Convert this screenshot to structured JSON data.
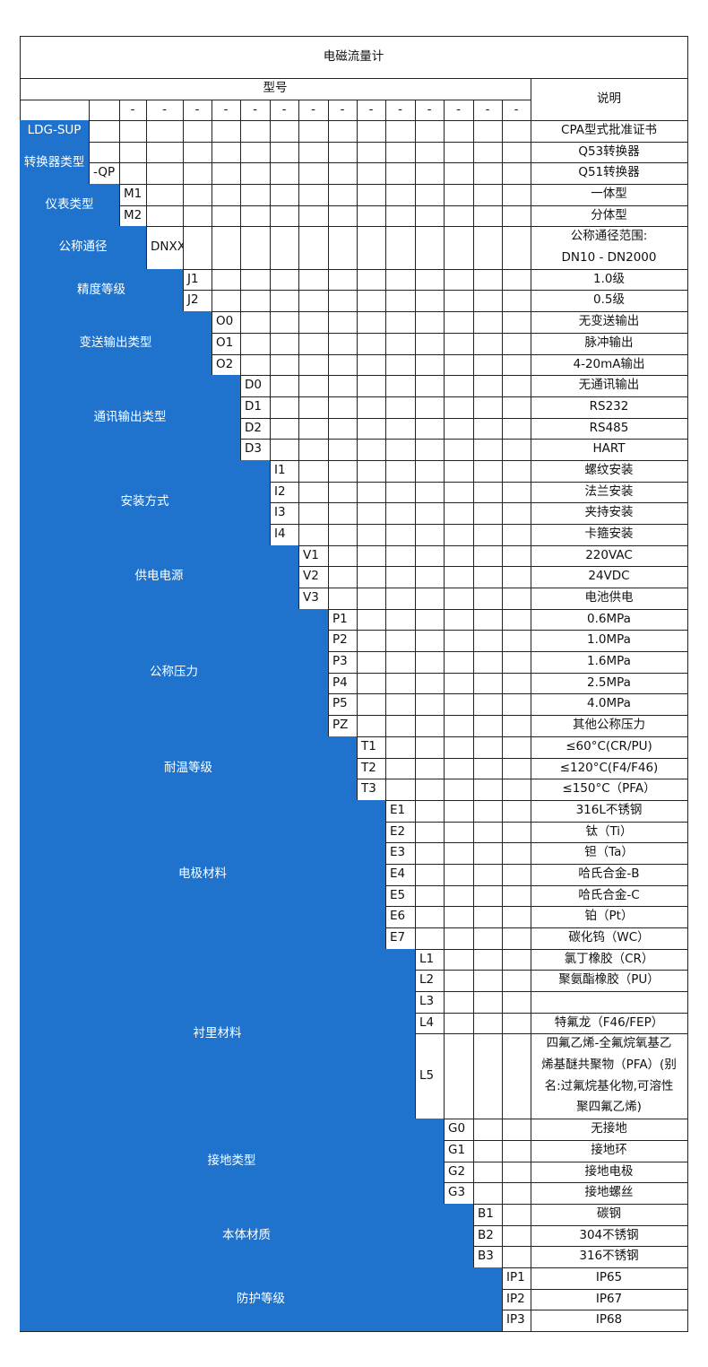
{
  "title": "电磁流量计",
  "model_header": "型号",
  "desc_header": "说明",
  "separators": [
    "-",
    "-",
    "-",
    "-",
    "-",
    "-",
    "-",
    "-",
    "-",
    "-",
    "-",
    "-",
    "-",
    "-"
  ],
  "groups": [
    {
      "name": "LDG-SUP",
      "items": [
        {
          "code": null,
          "desc": "CPA型式批准证书"
        }
      ]
    },
    {
      "name": "转换器类型",
      "items": [
        {
          "code": null,
          "desc": "Q53转换器"
        },
        {
          "code": "-QP",
          "desc": "Q51转换器"
        }
      ]
    },
    {
      "name": "仪表类型",
      "items": [
        {
          "code": "M1",
          "desc": "一体型"
        },
        {
          "code": "M2",
          "desc": "分体型"
        }
      ]
    },
    {
      "name": "公称通径",
      "items": [
        {
          "code": "DNXX",
          "desc": [
            "公称通径范围:",
            "DN10 - DN2000"
          ]
        }
      ]
    },
    {
      "name": "精度等级",
      "items": [
        {
          "code": "J1",
          "desc": "1.0级"
        },
        {
          "code": "J2",
          "desc": "0.5级"
        }
      ]
    },
    {
      "name": "变送输出类型",
      "items": [
        {
          "code": "O0",
          "desc": "无变送输出"
        },
        {
          "code": "O1",
          "desc": "脉冲输出"
        },
        {
          "code": "O2",
          "desc": "4-20mA输出"
        }
      ]
    },
    {
      "name": "通讯输出类型",
      "items": [
        {
          "code": "D0",
          "desc": "无通讯输出"
        },
        {
          "code": "D1",
          "desc": "RS232"
        },
        {
          "code": "D2",
          "desc": "RS485"
        },
        {
          "code": "D3",
          "desc": "HART"
        }
      ]
    },
    {
      "name": "安装方式",
      "items": [
        {
          "code": "I1",
          "desc": "螺纹安装"
        },
        {
          "code": "I2",
          "desc": "法兰安装"
        },
        {
          "code": "I3",
          "desc": "夹持安装"
        },
        {
          "code": "I4",
          "desc": "卡箍安装"
        }
      ]
    },
    {
      "name": "供电电源",
      "items": [
        {
          "code": "V1",
          "desc": "220VAC"
        },
        {
          "code": "V2",
          "desc": "24VDC"
        },
        {
          "code": "V3",
          "desc": "电池供电"
        }
      ]
    },
    {
      "name": "公称压力",
      "items": [
        {
          "code": "P1",
          "desc": "0.6MPa"
        },
        {
          "code": "P2",
          "desc": "1.0MPa"
        },
        {
          "code": "P3",
          "desc": "1.6MPa"
        },
        {
          "code": "P4",
          "desc": "2.5MPa"
        },
        {
          "code": "P5",
          "desc": "4.0MPa"
        },
        {
          "code": "PZ",
          "desc": "其他公称压力"
        }
      ]
    },
    {
      "name": "耐温等级",
      "items": [
        {
          "code": "T1",
          "desc": "≤60°C(CR/PU)"
        },
        {
          "code": "T2",
          "desc": "≤120°C(F4/F46)"
        },
        {
          "code": "T3",
          "desc": "≤150°C（PFA）"
        }
      ]
    },
    {
      "name": "电极材料",
      "items": [
        {
          "code": "E1",
          "desc": "316L不锈钢"
        },
        {
          "code": "E2",
          "desc": "钛（Ti）"
        },
        {
          "code": "E3",
          "desc": "钽（Ta）"
        },
        {
          "code": "E4",
          "desc": "哈氏合金-B"
        },
        {
          "code": "E5",
          "desc": "哈氏合金-C"
        },
        {
          "code": "E6",
          "desc": "铂（Pt）"
        },
        {
          "code": "E7",
          "desc": "碳化钨（WC）"
        }
      ]
    },
    {
      "name": "衬里材料",
      "items": [
        {
          "code": "L1",
          "desc": "氯丁橡胶（CR）"
        },
        {
          "code": "L2",
          "desc": "聚氨酯橡胶（PU）"
        },
        {
          "code": "L3",
          "desc": null
        },
        {
          "code": "L4",
          "desc": "特氟龙（F46/FEP）"
        },
        {
          "code": "L5",
          "desc": [
            "四氟乙烯-全氟烷氧基乙",
            "烯基醚共聚物（PFA）(别",
            "名:过氟烷基化物,可溶性",
            "聚四氟乙烯)"
          ]
        }
      ]
    },
    {
      "name": "接地类型",
      "items": [
        {
          "code": "G0",
          "desc": "无接地"
        },
        {
          "code": "G1",
          "desc": "接地环"
        },
        {
          "code": "G2",
          "desc": "接地电极"
        },
        {
          "code": "G3",
          "desc": "接地螺丝"
        }
      ]
    },
    {
      "name": "本体材质",
      "items": [
        {
          "code": "B1",
          "desc": "碳钢"
        },
        {
          "code": "B2",
          "desc": "304不锈钢"
        },
        {
          "code": "B3",
          "desc": "316不锈钢"
        }
      ]
    },
    {
      "name": "防护等级",
      "items": [
        {
          "code": "IP1",
          "desc": "IP65"
        },
        {
          "code": "IP2",
          "desc": "IP67"
        },
        {
          "code": "IP3",
          "desc": "IP68"
        }
      ]
    }
  ]
}
